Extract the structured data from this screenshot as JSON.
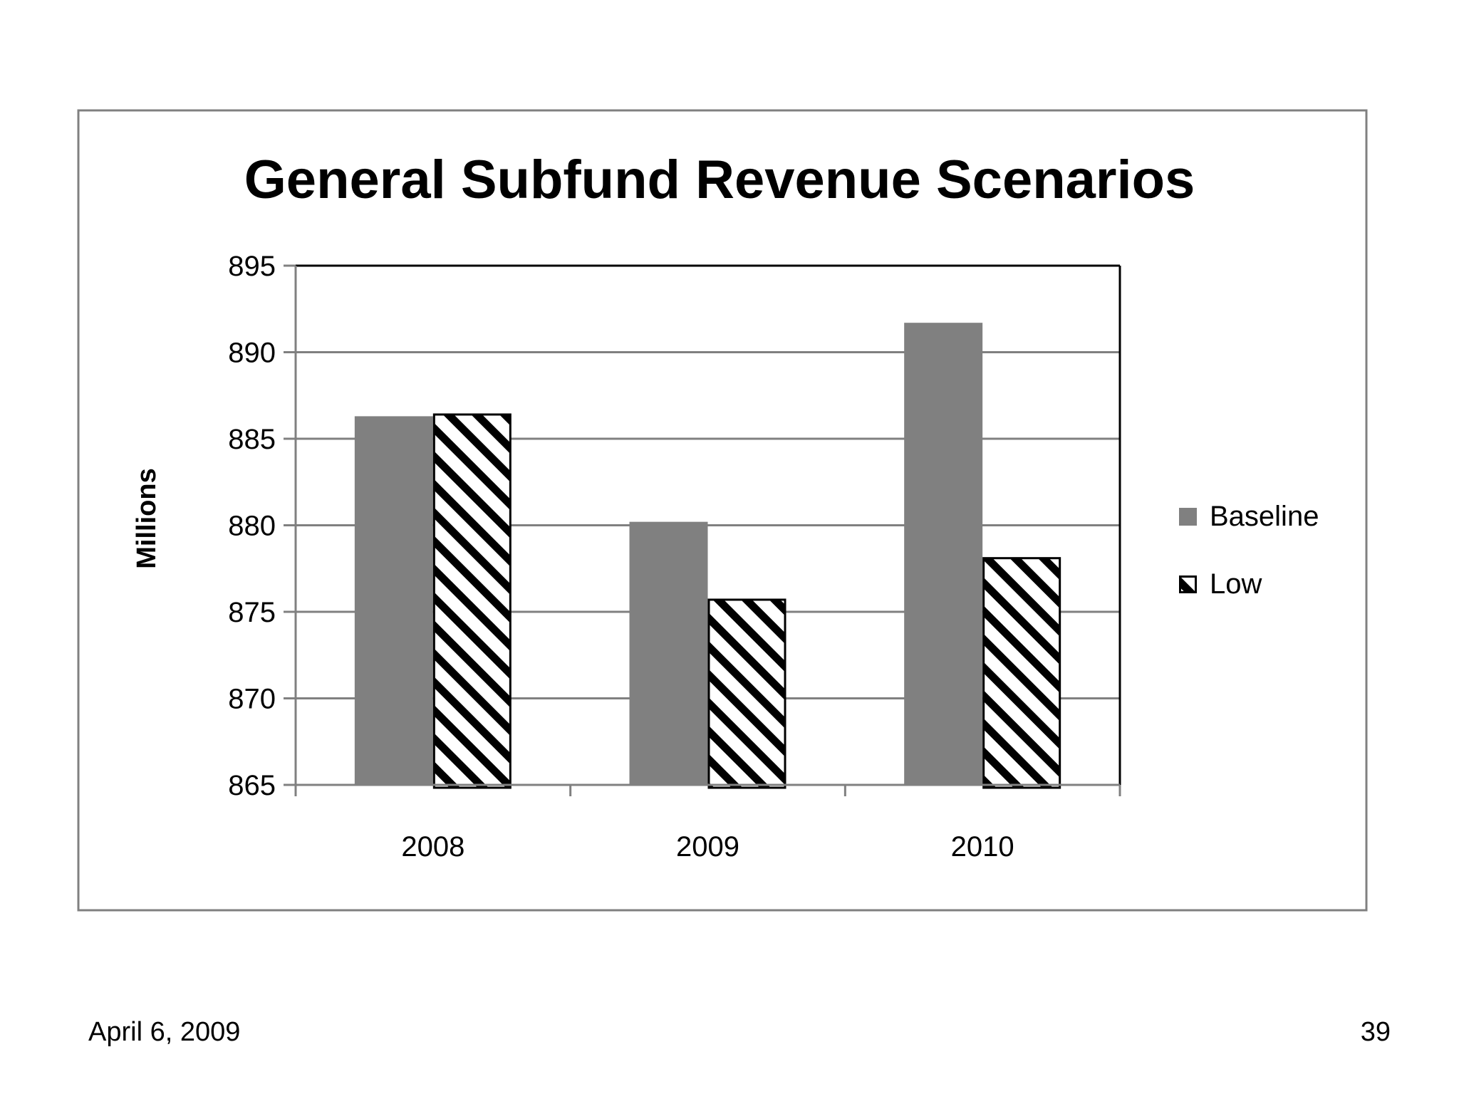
{
  "slide": {
    "date": "April 6, 2009",
    "page_number": "39"
  },
  "chart_data": {
    "type": "bar",
    "title": "General Subfund Revenue Scenarios",
    "xlabel": "",
    "ylabel": "Millions",
    "categories": [
      "2008",
      "2009",
      "2010"
    ],
    "ylim": [
      865,
      895
    ],
    "yticks": [
      865,
      870,
      875,
      880,
      885,
      890,
      895
    ],
    "ytick_labels": [
      "865",
      "870",
      "875",
      "880",
      "885",
      "890",
      "895"
    ],
    "grid": true,
    "legend_position": "right",
    "series": [
      {
        "name": "Baseline",
        "values": [
          886.3,
          880.2,
          891.7
        ],
        "color": "#808080",
        "pattern": "solid"
      },
      {
        "name": "Low",
        "values": [
          886.4,
          875.7,
          878.1
        ],
        "color": "#000000",
        "pattern": "diagonal-hatch"
      }
    ]
  }
}
